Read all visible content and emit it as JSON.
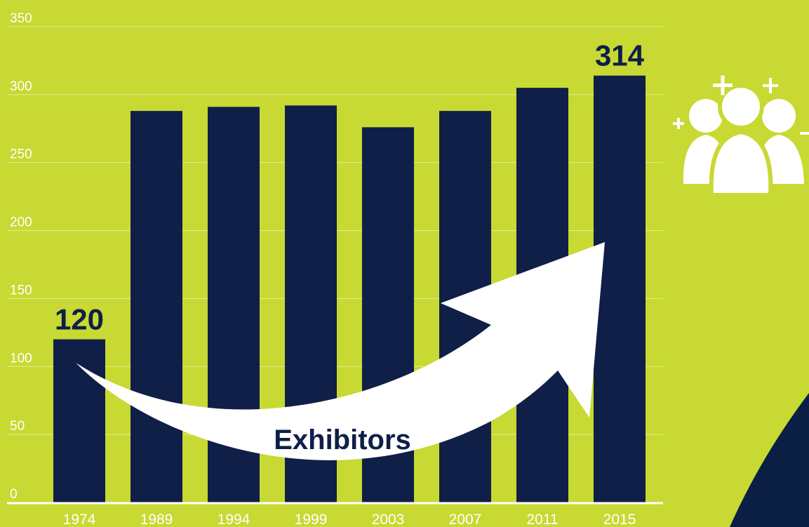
{
  "chart_data": {
    "type": "bar",
    "categories": [
      "1974",
      "1989",
      "1994",
      "1999",
      "2003",
      "2007",
      "2011",
      "2015"
    ],
    "values": [
      120,
      288,
      291,
      292,
      276,
      288,
      305,
      314
    ],
    "ylim": [
      0,
      350
    ],
    "yticks": [
      "0",
      "50",
      "100",
      "150",
      "200",
      "250",
      "300",
      "350"
    ],
    "grid": true,
    "data_labels": [
      {
        "category": "1974",
        "text": "120"
      },
      {
        "category": "2015",
        "text": "314"
      }
    ],
    "annotation": "Exhibitors",
    "colors": {
      "background": "#c7d932",
      "bar": "#0f1f48",
      "label": "#0f1f48",
      "grid": "#e6ee9a",
      "axis_text": "#ffffff",
      "arrow": "#ffffff",
      "corner_shape": "#0b1f44"
    }
  },
  "icons": {
    "people": "group-add-icon"
  }
}
